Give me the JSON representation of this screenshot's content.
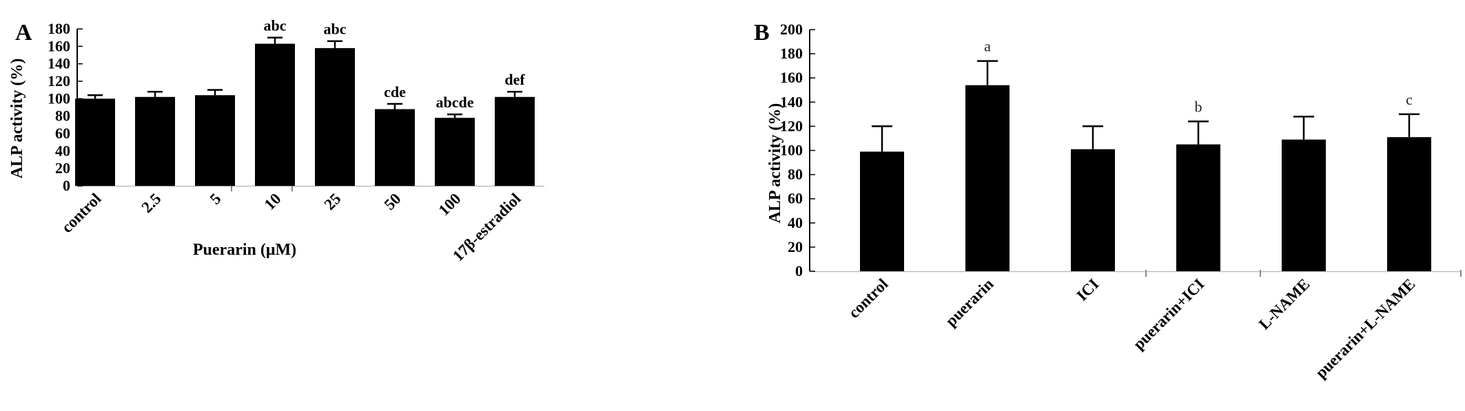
{
  "chart_data": [
    {
      "panel": "A",
      "type": "bar",
      "ylabel": "ALP activity (%)",
      "xlabel": "Puerarin (μM)",
      "ylim": [
        0,
        180
      ],
      "yticks": [
        0,
        20,
        40,
        60,
        80,
        100,
        120,
        140,
        160,
        180
      ],
      "categories": [
        "control",
        "2.5",
        "5",
        "10",
        "25",
        "50",
        "100",
        "17β-estradiol"
      ],
      "values": [
        100,
        102,
        104,
        163,
        158,
        88,
        78,
        102
      ],
      "errors": [
        4,
        6,
        6,
        7,
        8,
        6,
        4,
        6
      ],
      "annotations": [
        "",
        "",
        "",
        "abc",
        "abc",
        "cde",
        "abcde",
        "def"
      ],
      "grid": false,
      "legend": "none"
    },
    {
      "panel": "B",
      "type": "bar",
      "ylabel": "ALP activity (%)",
      "xlabel": "",
      "ylim": [
        0,
        200
      ],
      "yticks": [
        0,
        20,
        40,
        60,
        80,
        100,
        120,
        140,
        160,
        180,
        200
      ],
      "categories": [
        "control",
        "puerarin",
        "ICI",
        "puerarin+ICI",
        "L-NAME",
        "puerarin+L-NAME"
      ],
      "values": [
        99,
        154,
        101,
        105,
        109,
        111
      ],
      "errors": [
        21,
        20,
        19,
        19,
        19,
        19
      ],
      "annotations": [
        "",
        "a",
        "",
        "b",
        "",
        "c"
      ],
      "grid": false,
      "legend": "none"
    }
  ]
}
